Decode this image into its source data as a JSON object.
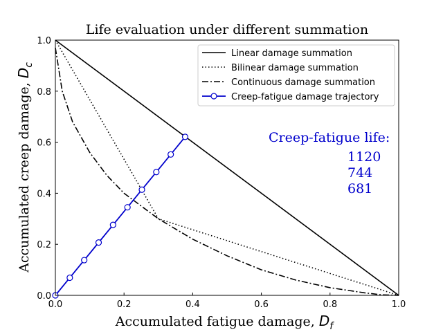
{
  "chart_data": {
    "type": "line",
    "title": "Life evaluation under different summation",
    "xlabel_text": "Accumulated fatigue damage, ",
    "xlabel_symbol": "D",
    "xlabel_sub": "f",
    "ylabel_text": "Accumulated creep damage, ",
    "ylabel_symbol": "D",
    "ylabel_sub": "c",
    "xlim": [
      0,
      1
    ],
    "ylim": [
      0,
      1
    ],
    "xticks": [
      0.0,
      0.2,
      0.4,
      0.6,
      0.8,
      1.0
    ],
    "yticks": [
      0.0,
      0.2,
      0.4,
      0.6,
      0.8,
      1.0
    ],
    "xtick_labels": [
      "0.0",
      "0.2",
      "0.4",
      "0.6",
      "0.8",
      "1.0"
    ],
    "ytick_labels": [
      "0.0",
      "0.2",
      "0.4",
      "0.6",
      "0.8",
      "1.0"
    ],
    "grid": false,
    "legend_position": "top-right",
    "series": [
      {
        "name": "Linear damage summation",
        "style": "solid",
        "color": "#000000",
        "x": [
          0.0,
          1.0
        ],
        "y": [
          1.0,
          0.0
        ]
      },
      {
        "name": "Bilinear damage summation",
        "style": "dotted",
        "color": "#000000",
        "x": [
          0.0,
          0.3,
          1.0
        ],
        "y": [
          1.0,
          0.3,
          0.0
        ]
      },
      {
        "name": "Continuous damage summation",
        "style": "dashdot",
        "color": "#000000",
        "x": [
          0.0,
          0.02,
          0.05,
          0.1,
          0.15,
          0.2,
          0.25,
          0.3,
          0.4,
          0.5,
          0.6,
          0.7,
          0.8,
          0.9,
          0.95,
          1.0
        ],
        "y": [
          0.97,
          0.8,
          0.68,
          0.56,
          0.47,
          0.4,
          0.35,
          0.3,
          0.22,
          0.155,
          0.1,
          0.06,
          0.03,
          0.01,
          0.002,
          0.0
        ]
      },
      {
        "name": "Creep-fatigue damage trajectory",
        "style": "solid-marker",
        "color": "#0000cc",
        "x": [
          0.0,
          0.042,
          0.084,
          0.126,
          0.168,
          0.21,
          0.252,
          0.294,
          0.336,
          0.378
        ],
        "y": [
          0.0,
          0.069,
          0.138,
          0.207,
          0.276,
          0.345,
          0.414,
          0.483,
          0.552,
          0.621
        ]
      }
    ],
    "annotation": {
      "title": "Creep-fatigue life:",
      "values": [
        "1120",
        "744",
        "681"
      ],
      "color": "#0000cc"
    }
  }
}
